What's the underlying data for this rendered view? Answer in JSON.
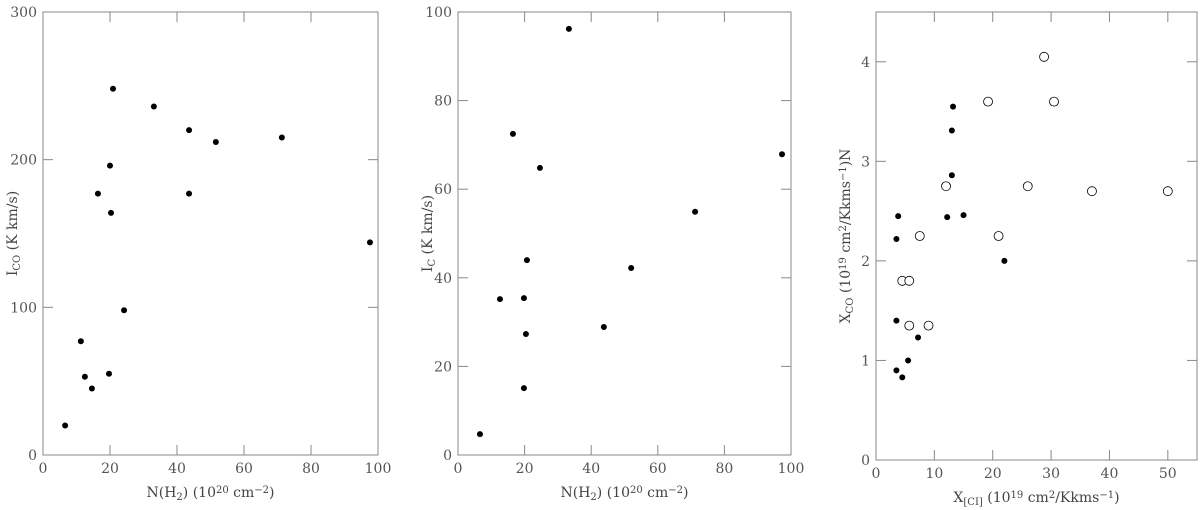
{
  "chart_data": [
    {
      "type": "scatter",
      "xlabel": [
        {
          "text": "N(H"
        },
        {
          "text": "2",
          "script": "sub"
        },
        {
          "text": ")  (10"
        },
        {
          "text": "20",
          "script": "sup"
        },
        {
          "text": " cm"
        },
        {
          "text": "−2",
          "script": "sup"
        },
        {
          "text": ")"
        }
      ],
      "ylabel": [
        {
          "text": "I"
        },
        {
          "text": "CO",
          "script": "sub"
        },
        {
          "text": " (K km/s)"
        }
      ],
      "xlim": [
        0,
        100
      ],
      "ylim": [
        0,
        300
      ],
      "xticks": [
        0,
        20,
        40,
        60,
        80,
        100
      ],
      "yticks": [
        0,
        100,
        200,
        300
      ],
      "series": [
        {
          "color": "#000000",
          "marker": "filled",
          "x": [
            6.6,
            11.3,
            12.5,
            14.6,
            16.4,
            20,
            19.7,
            20.3,
            20.9,
            24.2,
            33.1,
            43.6,
            43.6,
            51.6,
            71.3,
            97.6
          ],
          "values": [
            20,
            77,
            53,
            45,
            177,
            196,
            55,
            164,
            248,
            98,
            236,
            220,
            177,
            212,
            215,
            144
          ]
        }
      ]
    },
    {
      "type": "scatter",
      "xlabel": [
        {
          "text": "N(H"
        },
        {
          "text": "2",
          "script": "sub"
        },
        {
          "text": ")  (10"
        },
        {
          "text": "20",
          "script": "sup"
        },
        {
          "text": " cm"
        },
        {
          "text": "−2",
          "script": "sup"
        },
        {
          "text": ")"
        }
      ],
      "ylabel": [
        {
          "text": "I"
        },
        {
          "text": "C",
          "script": "sub"
        },
        {
          "text": " (K km/s)"
        }
      ],
      "xlim": [
        0,
        100
      ],
      "ylim": [
        0,
        100
      ],
      "xticks": [
        0,
        20,
        40,
        60,
        80,
        100
      ],
      "yticks": [
        0,
        20,
        40,
        60,
        80,
        100
      ],
      "series": [
        {
          "color": "#000000",
          "marker": "filled",
          "x": [
            6.6,
            12.6,
            16.5,
            19.8,
            19.8,
            20.4,
            20.7,
            24.6,
            33.3,
            43.8,
            52,
            71.2,
            97.3
          ],
          "values": [
            4.7,
            35.2,
            72.5,
            35.4,
            15.1,
            27.3,
            44,
            64.8,
            96.2,
            28.9,
            42.2,
            54.9,
            67.9
          ]
        }
      ]
    },
    {
      "type": "scatter",
      "xlabel": [
        {
          "text": "X"
        },
        {
          "text": "[CI]",
          "script": "sub"
        },
        {
          "text": " (10"
        },
        {
          "text": "19",
          "script": "sup"
        },
        {
          "text": " cm"
        },
        {
          "text": "2",
          "script": "sup"
        },
        {
          "text": "/Kkms"
        },
        {
          "text": "−1",
          "script": "sup"
        },
        {
          "text": ")"
        }
      ],
      "ylabel": [
        {
          "text": "X"
        },
        {
          "text": "CO",
          "script": "sub"
        },
        {
          "text": " (10"
        },
        {
          "text": "19",
          "script": "sup"
        },
        {
          "text": " cm"
        },
        {
          "text": "2",
          "script": "sup"
        },
        {
          "text": "/Kkms"
        },
        {
          "text": "−1",
          "script": "sup"
        },
        {
          "text": ")N"
        }
      ],
      "xlim": [
        0,
        55
      ],
      "ylim": [
        0,
        4.5
      ],
      "xticks": [
        0,
        10,
        20,
        30,
        40,
        50
      ],
      "yticks": [
        0,
        1,
        2,
        3,
        4
      ],
      "series": [
        {
          "color": "#000000",
          "marker": "filled",
          "x": [
            3.5,
            4.5,
            5.5,
            3.5,
            7.2,
            3.5,
            3.8,
            12.2,
            13,
            13,
            13.2,
            15,
            22
          ],
          "values": [
            0.9,
            0.83,
            1.0,
            1.4,
            1.23,
            2.22,
            2.45,
            2.44,
            2.86,
            3.31,
            3.55,
            2.46,
            2.0
          ]
        },
        {
          "color": "#000000",
          "marker": "open",
          "x": [
            4.5,
            5.7,
            5.7,
            9,
            7.5,
            12,
            19.2,
            21,
            26,
            28.8,
            30.5,
            37,
            50
          ],
          "values": [
            1.8,
            1.8,
            1.35,
            1.35,
            2.25,
            2.75,
            3.6,
            2.25,
            2.75,
            4.05,
            3.6,
            2.7,
            2.7
          ]
        }
      ]
    }
  ]
}
